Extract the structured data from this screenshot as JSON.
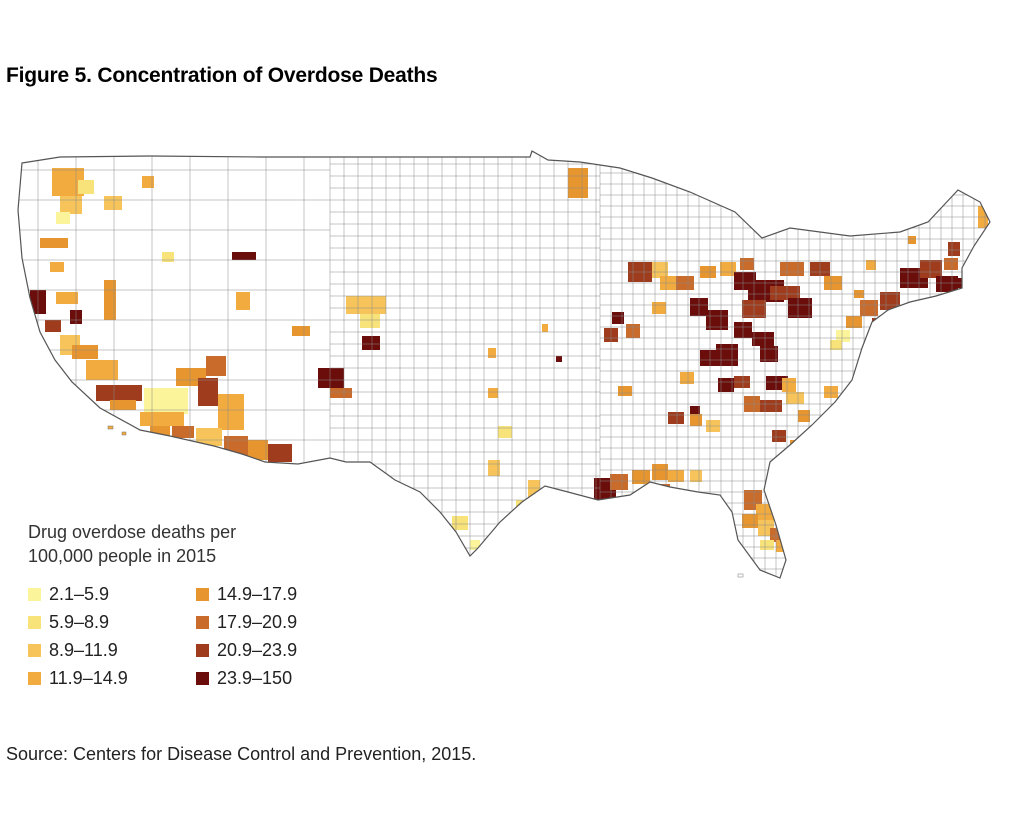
{
  "figure": {
    "title": "Figure 5. Concentration of Overdose Deaths",
    "source": "Source: Centers for Disease Control and Prevention, 2015."
  },
  "legend": {
    "title_line1": "Drug overdose deaths per",
    "title_line2": "100,000 people in 2015",
    "items": [
      {
        "label": "2.1–5.9",
        "color": "#fbf49a"
      },
      {
        "label": "5.9–8.9",
        "color": "#f8e27a"
      },
      {
        "label": "8.9–11.9",
        "color": "#f6c45a"
      },
      {
        "label": "11.9–14.9",
        "color": "#f2ab3f"
      },
      {
        "label": "14.9–17.9",
        "color": "#e7952e"
      },
      {
        "label": "17.9–20.9",
        "color": "#c96b2b"
      },
      {
        "label": "20.9–23.9",
        "color": "#9e3c1d"
      },
      {
        "label": "23.9–150",
        "color": "#6a0d0b"
      }
    ]
  },
  "map": {
    "region": "Contiguous United States",
    "base_fill": "#ffffff",
    "border_color": "#8a8a8a"
  }
}
